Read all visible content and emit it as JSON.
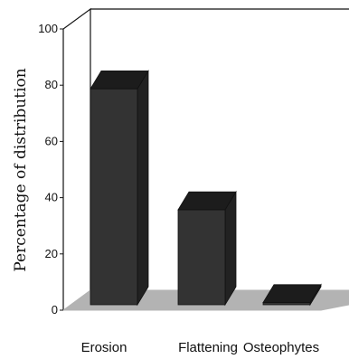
{
  "chart_data": {
    "type": "bar",
    "three_d": true,
    "categories": [
      "Erosion",
      "Flattening",
      "Osteophytes"
    ],
    "values": [
      80,
      37,
      4
    ],
    "ylabel": "Percentage of distribution",
    "xlabel": "",
    "ylim": [
      0,
      100
    ],
    "yticks": [
      0,
      20,
      40,
      60,
      80,
      100
    ],
    "grid": false,
    "colors": {
      "bar": "#333333",
      "bar_top": "#1c1c1c",
      "bar_side": "#222222",
      "floor": "#b3b3b3",
      "axis": "#111111"
    }
  }
}
